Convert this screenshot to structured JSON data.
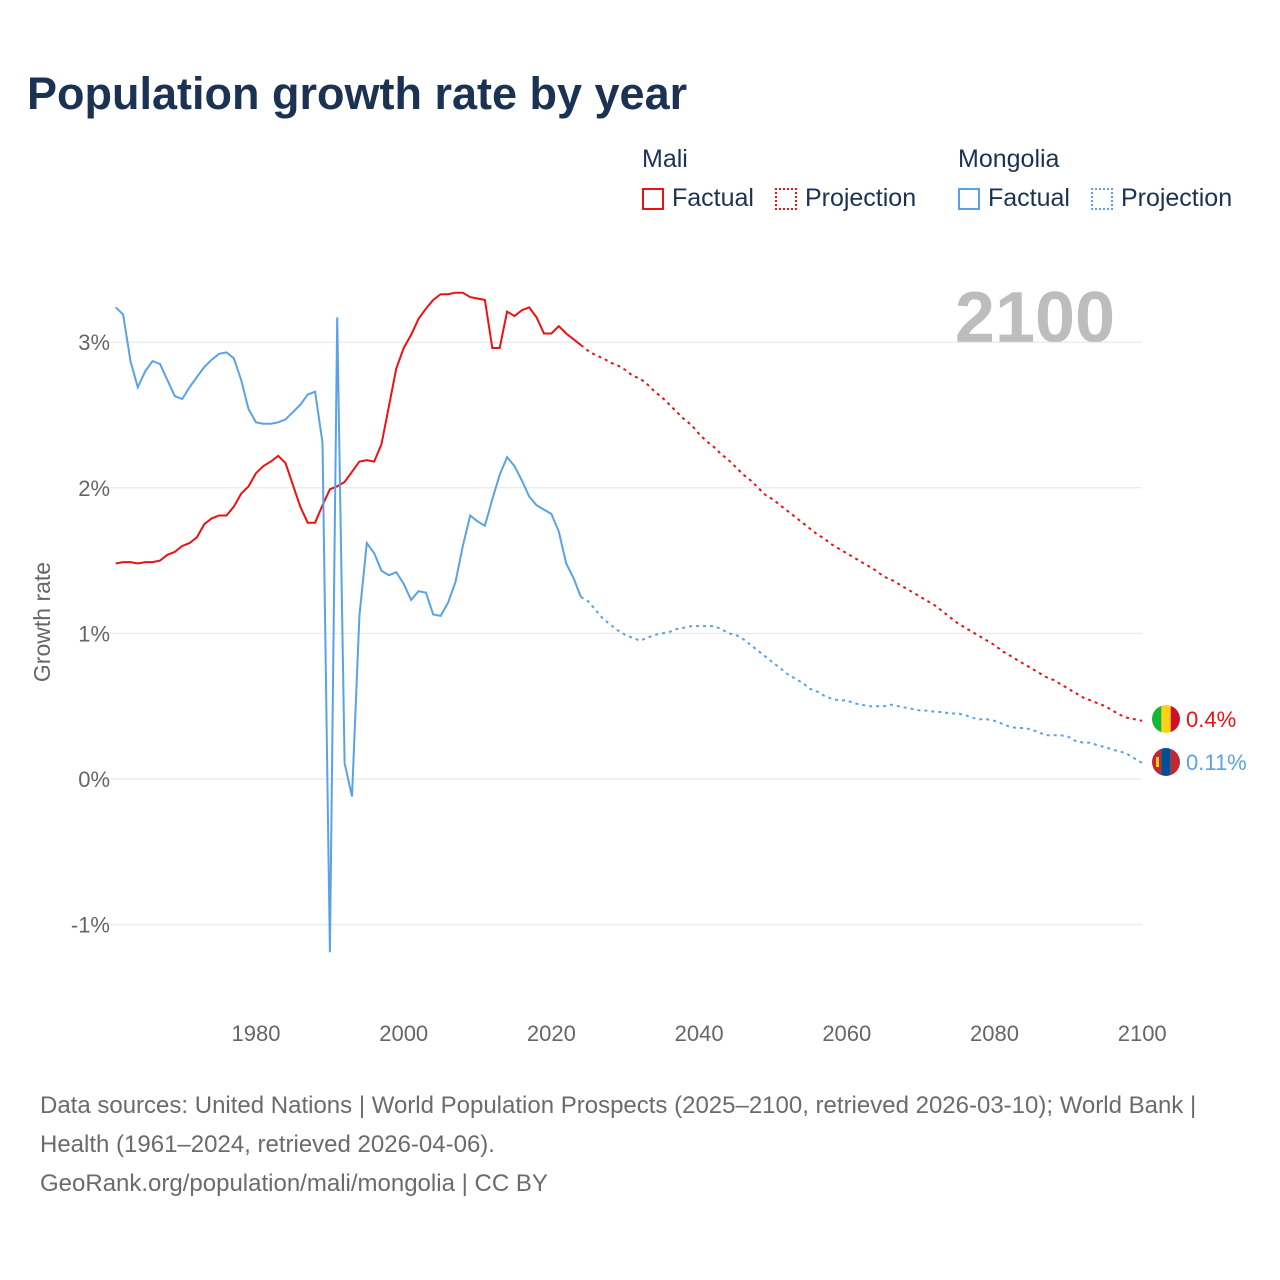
{
  "title": "Population growth rate by year",
  "legend": {
    "groups": [
      {
        "name": "Mali",
        "factual": "Factual",
        "projection": "Projection",
        "color": "#ee1111"
      },
      {
        "name": "Mongolia",
        "factual": "Factual",
        "projection": "Projection",
        "color": "#5aa2e8"
      }
    ]
  },
  "footer": {
    "sources": "Data sources: United Nations | World Population Prospects (2025–2100, retrieved 2026-03-10); World Bank | Health (1961–2024, retrieved 2026-04-06).",
    "credit": "GeoRank.org/population/mali/mongolia | CC BY"
  },
  "chart_data": {
    "type": "line",
    "title": "Population growth rate by year",
    "ylabel": "Growth rate",
    "xlabel": "",
    "year_overlay": "2100",
    "xlim": [
      1961,
      2100
    ],
    "ylim": [
      -1.5,
      3.4
    ],
    "x_ticks": [
      1980,
      2000,
      2020,
      2040,
      2060,
      2080,
      2100
    ],
    "y_ticks": [
      {
        "v": -1,
        "label": "-1%"
      },
      {
        "v": 0,
        "label": "0%"
      },
      {
        "v": 1,
        "label": "1%"
      },
      {
        "v": 2,
        "label": "2%"
      },
      {
        "v": 3,
        "label": "3%"
      }
    ],
    "grid": true,
    "series": [
      {
        "name": "Mali",
        "color": "#ee1111",
        "end_label": "0.4%",
        "factual_start": 1961,
        "factual": [
          1.48,
          1.49,
          1.49,
          1.48,
          1.49,
          1.49,
          1.5,
          1.54,
          1.56,
          1.6,
          1.62,
          1.66,
          1.75,
          1.79,
          1.81,
          1.81,
          1.87,
          1.96,
          2.01,
          2.1,
          2.15,
          2.18,
          2.22,
          2.17,
          2.02,
          1.87,
          1.76,
          1.76,
          1.88,
          1.99,
          2.01,
          2.04,
          2.11,
          2.18,
          2.19,
          2.18,
          2.3,
          2.56,
          2.82,
          2.96,
          3.05,
          3.16,
          3.23,
          3.29,
          3.33,
          3.33,
          3.34,
          3.34,
          3.31,
          3.3,
          3.29,
          2.96,
          2.96,
          3.21,
          3.18,
          3.22,
          3.24,
          3.17,
          3.06,
          3.06,
          3.11,
          3.06,
          3.02,
          2.98
        ],
        "projection_start": 2025,
        "projection": [
          2.94,
          2.91,
          2.89,
          2.86,
          2.84,
          2.81,
          2.77,
          2.75,
          2.71,
          2.66,
          2.62,
          2.57,
          2.52,
          2.47,
          2.43,
          2.37,
          2.32,
          2.28,
          2.23,
          2.19,
          2.14,
          2.09,
          2.05,
          2.0,
          1.95,
          1.92,
          1.88,
          1.84,
          1.8,
          1.76,
          1.72,
          1.68,
          1.65,
          1.61,
          1.58,
          1.55,
          1.52,
          1.49,
          1.46,
          1.43,
          1.39,
          1.37,
          1.34,
          1.31,
          1.28,
          1.25,
          1.22,
          1.19,
          1.15,
          1.11,
          1.07,
          1.04,
          1.01,
          0.98,
          0.95,
          0.92,
          0.88,
          0.85,
          0.82,
          0.79,
          0.76,
          0.73,
          0.7,
          0.68,
          0.65,
          0.62,
          0.59,
          0.56,
          0.54,
          0.52,
          0.5,
          0.47,
          0.44,
          0.42,
          0.41,
          0.4
        ]
      },
      {
        "name": "Mongolia",
        "color": "#5aa2e8",
        "end_label": "0.11%",
        "factual_start": 1961,
        "factual": [
          3.24,
          3.19,
          2.87,
          2.69,
          2.8,
          2.87,
          2.85,
          2.74,
          2.63,
          2.61,
          2.69,
          2.76,
          2.83,
          2.88,
          2.92,
          2.93,
          2.89,
          2.74,
          2.54,
          2.45,
          2.44,
          2.44,
          2.45,
          2.47,
          2.52,
          2.57,
          2.64,
          2.66,
          2.31,
          -1.19,
          3.17,
          0.11,
          -0.12,
          1.12,
          1.62,
          1.55,
          1.43,
          1.4,
          1.42,
          1.34,
          1.23,
          1.29,
          1.28,
          1.13,
          1.12,
          1.21,
          1.35,
          1.6,
          1.81,
          1.77,
          1.74,
          1.92,
          2.09,
          2.21,
          2.15,
          2.05,
          1.94,
          1.88,
          1.85,
          1.82,
          1.7,
          1.48,
          1.38,
          1.25
        ],
        "projection_start": 2025,
        "projection": [
          1.22,
          1.16,
          1.1,
          1.06,
          1.02,
          0.99,
          0.97,
          0.95,
          0.97,
          0.99,
          1.0,
          1.01,
          1.03,
          1.04,
          1.05,
          1.05,
          1.05,
          1.05,
          1.03,
          1.0,
          0.99,
          0.96,
          0.92,
          0.88,
          0.84,
          0.8,
          0.76,
          0.72,
          0.69,
          0.66,
          0.62,
          0.6,
          0.57,
          0.55,
          0.54,
          0.54,
          0.52,
          0.51,
          0.5,
          0.5,
          0.5,
          0.51,
          0.5,
          0.49,
          0.48,
          0.47,
          0.47,
          0.46,
          0.46,
          0.45,
          0.45,
          0.44,
          0.42,
          0.41,
          0.41,
          0.4,
          0.38,
          0.36,
          0.35,
          0.35,
          0.34,
          0.32,
          0.3,
          0.3,
          0.3,
          0.29,
          0.26,
          0.25,
          0.25,
          0.23,
          0.22,
          0.2,
          0.19,
          0.17,
          0.14,
          0.11
        ]
      }
    ]
  }
}
